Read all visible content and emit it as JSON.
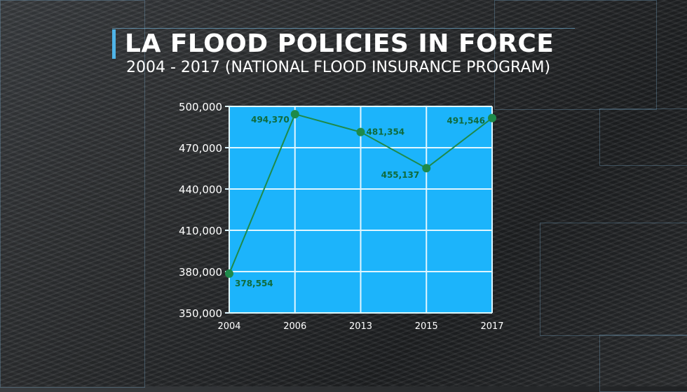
{
  "chart_data": {
    "type": "line",
    "title": "LA FLOOD POLICIES IN FORCE",
    "subtitle": "2004 - 2017 (NATIONAL FLOOD INSURANCE PROGRAM)",
    "xlabel": "",
    "ylabel": "",
    "categories": [
      "2004",
      "2006",
      "2013",
      "2015",
      "2017"
    ],
    "values": [
      378554,
      494370,
      481354,
      455137,
      491546
    ],
    "data_labels": [
      "378,554",
      "494,370",
      "481,354",
      "455,137",
      "491,546"
    ],
    "yticks": [
      350000,
      380000,
      410000,
      440000,
      470000,
      500000
    ],
    "ytick_labels": [
      "350,000",
      "380,000",
      "410,000",
      "440,000",
      "470,000",
      "500,000"
    ],
    "ylim": [
      350000,
      500000
    ],
    "grid": true,
    "colors": {
      "plot_bg": "#1cb4fb",
      "line": "#1e8a4a",
      "grid": "#dff6ff",
      "label": "#0f6b3c"
    }
  }
}
